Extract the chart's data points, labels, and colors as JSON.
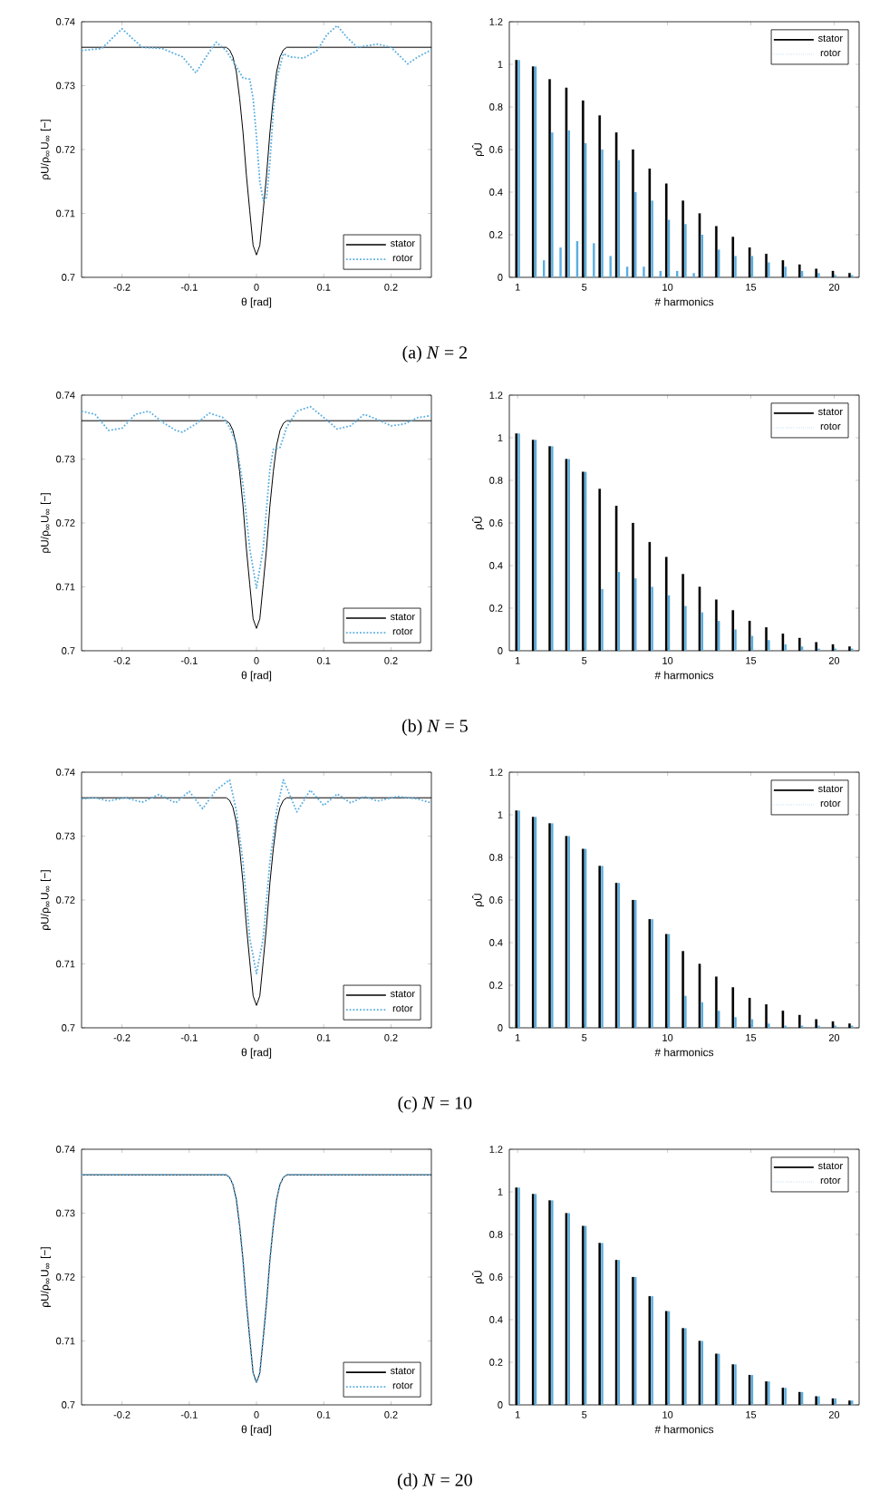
{
  "chart_data": [
    {
      "type": "line",
      "xlabel": "θ [rad]",
      "ylabel": "ρU/ρ$_{∞}$U$_{∞}$ [−]",
      "xlim": [
        -0.26,
        0.26
      ],
      "ylim": [
        0.7,
        0.74
      ],
      "xticks": [
        -0.2,
        -0.1,
        0,
        0.1,
        0.2
      ],
      "yticks": [
        0.7,
        0.71,
        0.72,
        0.73,
        0.74
      ],
      "legend": "bottom right",
      "annotations": [
        "(a)  *N* = 2"
      ],
      "series": [
        {
          "name": "stator",
          "color": "#000000",
          "line_style": "solid",
          "x": [
            -0.26,
            -0.045,
            -0.04,
            -0.035,
            -0.03,
            -0.025,
            -0.02,
            -0.015,
            -0.01,
            -0.005,
            0,
            0.005,
            0.01,
            0.015,
            0.02,
            0.025,
            0.03,
            0.035,
            0.04,
            0.045,
            0.26
          ],
          "values": [
            0.736,
            0.736,
            0.7356,
            0.7345,
            0.7322,
            0.728,
            0.7227,
            0.716,
            0.7104,
            0.705,
            0.7035,
            0.705,
            0.7104,
            0.716,
            0.7227,
            0.728,
            0.7322,
            0.7345,
            0.7356,
            0.736,
            0.736
          ]
        },
        {
          "name": "rotor",
          "color": "#5aaee0",
          "line_style": "dotted",
          "x": [
            -0.26,
            -0.23,
            -0.2,
            -0.17,
            -0.14,
            -0.11,
            -0.09,
            -0.075,
            -0.06,
            -0.045,
            -0.03,
            -0.02,
            -0.01,
            -0.005,
            0,
            0.005,
            0.01,
            0.015,
            0.02,
            0.025,
            0.03,
            0.04,
            0.05,
            0.07,
            0.09,
            0.105,
            0.12,
            0.135,
            0.15,
            0.18,
            0.2,
            0.225,
            0.24,
            0.26
          ],
          "values": [
            0.7355,
            0.7358,
            0.7389,
            0.736,
            0.7358,
            0.7345,
            0.732,
            0.7345,
            0.7368,
            0.7355,
            0.733,
            0.7312,
            0.731,
            0.728,
            0.722,
            0.715,
            0.712,
            0.7125,
            0.718,
            0.726,
            0.731,
            0.735,
            0.7345,
            0.7343,
            0.7355,
            0.738,
            0.7394,
            0.7375,
            0.736,
            0.7365,
            0.736,
            0.7334,
            0.7345,
            0.7356
          ]
        }
      ]
    },
    {
      "type": "bar",
      "xlabel": "# harmonics",
      "ylabel": "ρÛ",
      "xlim": [
        0.5,
        21.5
      ],
      "ylim": [
        0,
        1.2
      ],
      "xticks": [
        1,
        5,
        10,
        15,
        20
      ],
      "yticks": [
        0,
        0.2,
        0.4,
        0.6,
        0.8,
        1,
        1.2
      ],
      "legend": "top right",
      "series": [
        {
          "name": "stator",
          "color": "#000000",
          "line_style": "solid",
          "x": [
            1,
            2,
            3,
            4,
            5,
            6,
            7,
            8,
            9,
            10,
            11,
            12,
            13,
            14,
            15,
            16,
            17,
            18,
            19,
            20,
            21
          ],
          "values": [
            1.02,
            0.99,
            0.93,
            0.89,
            0.83,
            0.76,
            0.68,
            0.6,
            0.51,
            0.44,
            0.36,
            0.3,
            0.24,
            0.19,
            0.14,
            0.11,
            0.08,
            0.06,
            0.04,
            0.03,
            0.02
          ]
        },
        {
          "name": "rotor",
          "color": "#5aaee0",
          "line_style": "dotted",
          "x": [
            1,
            2,
            2.5,
            3,
            3.5,
            4,
            4.5,
            5,
            5.5,
            6,
            6.5,
            7,
            7.5,
            8,
            8.5,
            9,
            9.5,
            10,
            10.5,
            11,
            11.5,
            12,
            13,
            14,
            15,
            16,
            17,
            18,
            19,
            20,
            21
          ],
          "values": [
            1.02,
            0.99,
            0.08,
            0.68,
            0.14,
            0.69,
            0.17,
            0.63,
            0.16,
            0.6,
            0.1,
            0.55,
            0.05,
            0.4,
            0.05,
            0.36,
            0.03,
            0.27,
            0.03,
            0.25,
            0.02,
            0.2,
            0.13,
            0.1,
            0.1,
            0.07,
            0.05,
            0.03,
            0.02,
            0.01,
            0.01
          ]
        }
      ]
    },
    {
      "type": "line",
      "xlabel": "θ [rad]",
      "ylabel": "ρU/ρ$_{∞}$U$_{∞}$ [−]",
      "xlim": [
        -0.26,
        0.26
      ],
      "ylim": [
        0.7,
        0.74
      ],
      "xticks": [
        -0.2,
        -0.1,
        0,
        0.1,
        0.2
      ],
      "yticks": [
        0.7,
        0.71,
        0.72,
        0.73,
        0.74
      ],
      "legend": "bottom right",
      "annotations": [
        "(b)  *N* = 5"
      ],
      "series": [
        {
          "name": "stator",
          "color": "#000000",
          "line_style": "solid",
          "x": [
            -0.26,
            -0.045,
            -0.04,
            -0.035,
            -0.03,
            -0.025,
            -0.02,
            -0.015,
            -0.01,
            -0.005,
            0,
            0.005,
            0.01,
            0.015,
            0.02,
            0.025,
            0.03,
            0.035,
            0.04,
            0.045,
            0.26
          ],
          "values": [
            0.736,
            0.736,
            0.7356,
            0.7345,
            0.7322,
            0.728,
            0.7227,
            0.716,
            0.7104,
            0.705,
            0.7035,
            0.705,
            0.7104,
            0.716,
            0.7227,
            0.728,
            0.7322,
            0.7345,
            0.7356,
            0.736,
            0.736
          ]
        },
        {
          "name": "rotor",
          "color": "#5aaee0",
          "line_style": "dotted",
          "x": [
            -0.26,
            -0.24,
            -0.22,
            -0.2,
            -0.18,
            -0.16,
            -0.14,
            -0.12,
            -0.11,
            -0.09,
            -0.07,
            -0.05,
            -0.04,
            -0.03,
            -0.02,
            -0.01,
            0,
            0.01,
            0.02,
            0.025,
            0.035,
            0.045,
            0.06,
            0.08,
            0.1,
            0.12,
            0.14,
            0.16,
            0.18,
            0.2,
            0.22,
            0.24,
            0.26
          ],
          "values": [
            0.7375,
            0.737,
            0.7345,
            0.7348,
            0.737,
            0.7375,
            0.7358,
            0.7345,
            0.7342,
            0.7355,
            0.7372,
            0.7365,
            0.735,
            0.7325,
            0.726,
            0.716,
            0.7098,
            0.716,
            0.7285,
            0.7315,
            0.7318,
            0.735,
            0.7375,
            0.7382,
            0.7365,
            0.7347,
            0.7352,
            0.737,
            0.7362,
            0.7352,
            0.7355,
            0.7365,
            0.7368
          ]
        }
      ]
    },
    {
      "type": "bar",
      "xlabel": "# harmonics",
      "ylabel": "ρÛ",
      "xlim": [
        0.5,
        21.5
      ],
      "ylim": [
        0,
        1.2
      ],
      "xticks": [
        1,
        5,
        10,
        15,
        20
      ],
      "yticks": [
        0,
        0.2,
        0.4,
        0.6,
        0.8,
        1,
        1.2
      ],
      "legend": "top right",
      "series": [
        {
          "name": "stator",
          "color": "#000000",
          "line_style": "solid",
          "x": [
            1,
            2,
            3,
            4,
            5,
            6,
            7,
            8,
            9,
            10,
            11,
            12,
            13,
            14,
            15,
            16,
            17,
            18,
            19,
            20,
            21
          ],
          "values": [
            1.02,
            0.99,
            0.96,
            0.9,
            0.84,
            0.76,
            0.68,
            0.6,
            0.51,
            0.44,
            0.36,
            0.3,
            0.24,
            0.19,
            0.14,
            0.11,
            0.08,
            0.06,
            0.04,
            0.03,
            0.02
          ]
        },
        {
          "name": "rotor",
          "color": "#5aaee0",
          "line_style": "dotted",
          "x": [
            1,
            2,
            3,
            4,
            5,
            6,
            7,
            8,
            9,
            10,
            11,
            12,
            13,
            14,
            15,
            16,
            17,
            18,
            19,
            20,
            21
          ],
          "values": [
            1.02,
            0.99,
            0.96,
            0.9,
            0.84,
            0.29,
            0.37,
            0.34,
            0.3,
            0.26,
            0.21,
            0.18,
            0.14,
            0.1,
            0.07,
            0.05,
            0.03,
            0.02,
            0.01,
            0.01,
            0.01
          ]
        }
      ]
    },
    {
      "type": "line",
      "xlabel": "θ [rad]",
      "ylabel": "ρU/ρ$_{∞}$U$_{∞}$ [−]",
      "xlim": [
        -0.26,
        0.26
      ],
      "ylim": [
        0.7,
        0.74
      ],
      "xticks": [
        -0.2,
        -0.1,
        0,
        0.1,
        0.2
      ],
      "yticks": [
        0.7,
        0.71,
        0.72,
        0.73,
        0.74
      ],
      "legend": "bottom right",
      "annotations": [
        "(c)  *N* = 10"
      ],
      "series": [
        {
          "name": "stator",
          "color": "#000000",
          "line_style": "solid",
          "x": [
            -0.26,
            -0.045,
            -0.04,
            -0.035,
            -0.03,
            -0.025,
            -0.02,
            -0.015,
            -0.01,
            -0.005,
            0,
            0.005,
            0.01,
            0.015,
            0.02,
            0.025,
            0.03,
            0.035,
            0.04,
            0.045,
            0.26
          ],
          "values": [
            0.736,
            0.736,
            0.7356,
            0.7345,
            0.7322,
            0.728,
            0.7227,
            0.716,
            0.7104,
            0.705,
            0.7035,
            0.705,
            0.7104,
            0.716,
            0.7227,
            0.728,
            0.7322,
            0.7345,
            0.7356,
            0.736,
            0.736
          ]
        },
        {
          "name": "rotor",
          "color": "#5aaee0",
          "line_style": "dotted",
          "x": [
            -0.26,
            -0.24,
            -0.22,
            -0.195,
            -0.17,
            -0.145,
            -0.12,
            -0.1,
            -0.08,
            -0.06,
            -0.04,
            -0.03,
            -0.02,
            -0.01,
            0,
            0.01,
            0.02,
            0.03,
            0.04,
            0.06,
            0.08,
            0.1,
            0.12,
            0.14,
            0.16,
            0.18,
            0.21,
            0.24,
            0.26
          ],
          "values": [
            0.7358,
            0.736,
            0.7355,
            0.736,
            0.7353,
            0.7365,
            0.7352,
            0.737,
            0.7343,
            0.7372,
            0.7388,
            0.734,
            0.726,
            0.714,
            0.7085,
            0.714,
            0.726,
            0.734,
            0.7388,
            0.7338,
            0.7372,
            0.7348,
            0.7366,
            0.7352,
            0.7362,
            0.7355,
            0.7362,
            0.7358,
            0.7352
          ]
        }
      ]
    },
    {
      "type": "bar",
      "xlabel": "# harmonics",
      "ylabel": "ρÛ",
      "xlim": [
        0.5,
        21.5
      ],
      "ylim": [
        0,
        1.2
      ],
      "xticks": [
        1,
        5,
        10,
        15,
        20
      ],
      "yticks": [
        0,
        0.2,
        0.4,
        0.6,
        0.8,
        1,
        1.2
      ],
      "legend": "top right",
      "series": [
        {
          "name": "stator",
          "color": "#000000",
          "line_style": "solid",
          "x": [
            1,
            2,
            3,
            4,
            5,
            6,
            7,
            8,
            9,
            10,
            11,
            12,
            13,
            14,
            15,
            16,
            17,
            18,
            19,
            20,
            21
          ],
          "values": [
            1.02,
            0.99,
            0.96,
            0.9,
            0.84,
            0.76,
            0.68,
            0.6,
            0.51,
            0.44,
            0.36,
            0.3,
            0.24,
            0.19,
            0.14,
            0.11,
            0.08,
            0.06,
            0.04,
            0.03,
            0.02
          ]
        },
        {
          "name": "rotor",
          "color": "#5aaee0",
          "line_style": "dotted",
          "x": [
            1,
            2,
            3,
            4,
            5,
            6,
            7,
            8,
            9,
            10,
            11,
            12,
            13,
            14,
            15,
            16,
            17,
            18,
            19,
            20,
            21
          ],
          "values": [
            1.02,
            0.99,
            0.96,
            0.9,
            0.84,
            0.76,
            0.68,
            0.6,
            0.51,
            0.44,
            0.15,
            0.12,
            0.08,
            0.05,
            0.04,
            0.02,
            0.01,
            0.01,
            0.01,
            0.01,
            0.01
          ]
        }
      ]
    },
    {
      "type": "line",
      "xlabel": "θ [rad]",
      "ylabel": "ρU/ρ$_{∞}$U$_{∞}$ [−]",
      "xlim": [
        -0.26,
        0.26
      ],
      "ylim": [
        0.7,
        0.74
      ],
      "xticks": [
        -0.2,
        -0.1,
        0,
        0.1,
        0.2
      ],
      "yticks": [
        0.7,
        0.71,
        0.72,
        0.73,
        0.74
      ],
      "legend": "bottom right",
      "annotations": [
        "(d)  *N* = 20"
      ],
      "series": [
        {
          "name": "stator",
          "color": "#000000",
          "line_style": "solid",
          "x": [
            -0.26,
            -0.045,
            -0.04,
            -0.035,
            -0.03,
            -0.025,
            -0.02,
            -0.015,
            -0.01,
            -0.005,
            0,
            0.005,
            0.01,
            0.015,
            0.02,
            0.025,
            0.03,
            0.035,
            0.04,
            0.045,
            0.26
          ],
          "values": [
            0.736,
            0.736,
            0.7356,
            0.7345,
            0.7322,
            0.728,
            0.7227,
            0.716,
            0.7104,
            0.705,
            0.7035,
            0.705,
            0.7104,
            0.716,
            0.7227,
            0.728,
            0.7322,
            0.7345,
            0.7356,
            0.736,
            0.736
          ]
        },
        {
          "name": "rotor",
          "color": "#5aaee0",
          "line_style": "dotted",
          "x": [
            -0.26,
            -0.045,
            -0.04,
            -0.035,
            -0.03,
            -0.025,
            -0.02,
            -0.015,
            -0.01,
            -0.005,
            0,
            0.005,
            0.01,
            0.015,
            0.02,
            0.025,
            0.03,
            0.035,
            0.04,
            0.045,
            0.26
          ],
          "values": [
            0.736,
            0.736,
            0.7356,
            0.7345,
            0.7322,
            0.728,
            0.7227,
            0.716,
            0.7104,
            0.705,
            0.7035,
            0.705,
            0.7104,
            0.716,
            0.7227,
            0.728,
            0.7322,
            0.7345,
            0.7356,
            0.736,
            0.736
          ]
        }
      ]
    },
    {
      "type": "bar",
      "xlabel": "# harmonics",
      "ylabel": "ρÛ",
      "xlim": [
        0.5,
        21.5
      ],
      "ylim": [
        0,
        1.2
      ],
      "xticks": [
        1,
        5,
        10,
        15,
        20
      ],
      "yticks": [
        0,
        0.2,
        0.4,
        0.6,
        0.8,
        1,
        1.2
      ],
      "legend": "top right",
      "series": [
        {
          "name": "stator",
          "color": "#000000",
          "line_style": "solid",
          "x": [
            1,
            2,
            3,
            4,
            5,
            6,
            7,
            8,
            9,
            10,
            11,
            12,
            13,
            14,
            15,
            16,
            17,
            18,
            19,
            20,
            21
          ],
          "values": [
            1.02,
            0.99,
            0.96,
            0.9,
            0.84,
            0.76,
            0.68,
            0.6,
            0.51,
            0.44,
            0.36,
            0.3,
            0.24,
            0.19,
            0.14,
            0.11,
            0.08,
            0.06,
            0.04,
            0.03,
            0.02
          ]
        },
        {
          "name": "rotor",
          "color": "#5aaee0",
          "line_style": "dotted",
          "x": [
            1,
            2,
            3,
            4,
            5,
            6,
            7,
            8,
            9,
            10,
            11,
            12,
            13,
            14,
            15,
            16,
            17,
            18,
            19,
            20,
            21
          ],
          "values": [
            1.02,
            0.99,
            0.96,
            0.9,
            0.84,
            0.76,
            0.68,
            0.6,
            0.51,
            0.44,
            0.36,
            0.3,
            0.24,
            0.19,
            0.14,
            0.11,
            0.08,
            0.06,
            0.04,
            0.03,
            0.02
          ]
        }
      ]
    }
  ]
}
